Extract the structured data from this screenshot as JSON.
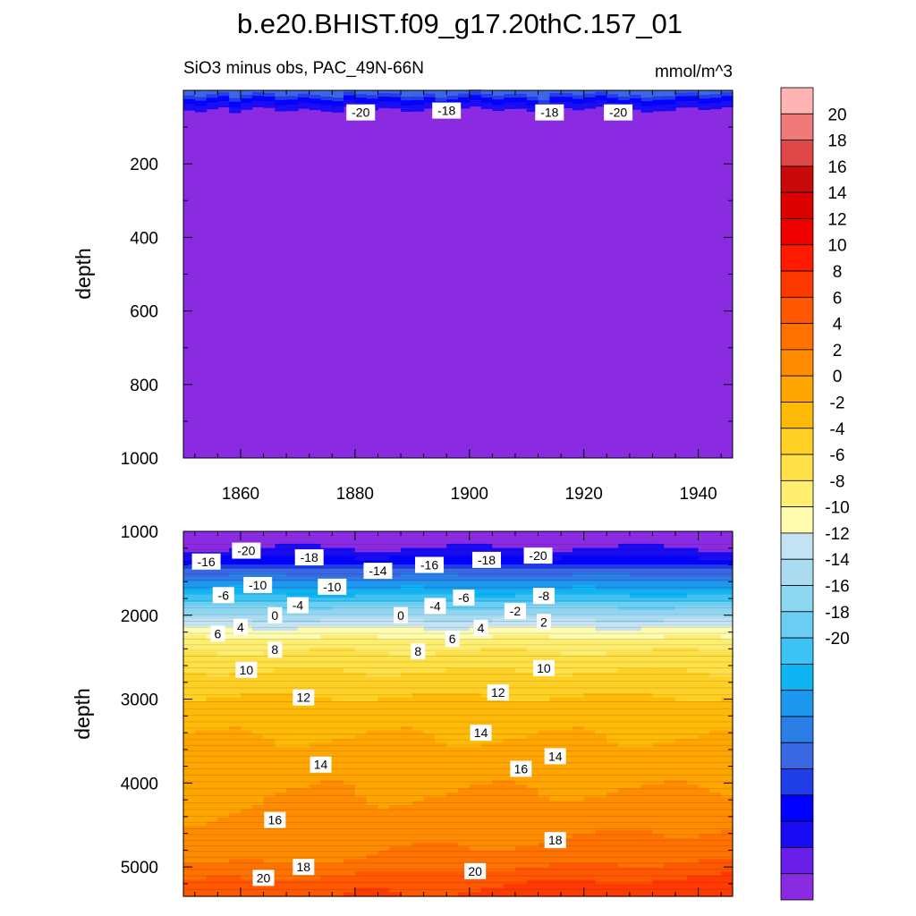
{
  "title": "b.e20.BHIST.f09_g17.20thC.157_01",
  "subtitle_left": "SiO3 minus obs, PAC_49N-66N",
  "subtitle_right": "mmol/m^3",
  "colors": {
    "levels": [
      "#8a2be2",
      "#6a1fe8",
      "#1a0cf2",
      "#0000ff",
      "#1f3ee8",
      "#3a68e2",
      "#2a7fe6",
      "#1e98ef",
      "#0fb5f3",
      "#3cc3f3",
      "#6ccdf2",
      "#8dd6f1",
      "#a9dcf0",
      "#c4e3f2",
      "#fffcb0",
      "#ffee70",
      "#ffe046",
      "#ffd025",
      "#ffba08",
      "#ffa500",
      "#ff8c00",
      "#ff7200",
      "#ff5800",
      "#ff3a00",
      "#ff1a00",
      "#ee0000",
      "#dd0000",
      "#c80a0a",
      "#e04848",
      "#f07a7a",
      "#ffb3b3"
    ]
  },
  "chart_data": [
    {
      "type": "heatmap",
      "panel": "top",
      "xlabel": "",
      "ylabel": "depth",
      "xlim": [
        1850,
        1946
      ],
      "ylim": [
        1000,
        0
      ],
      "xticks": [
        1860,
        1880,
        1900,
        1920,
        1940
      ],
      "yticks": [
        200,
        400,
        600,
        800,
        1000
      ],
      "field": "nearly uniform -21 below 50 m; near-surface layer grades from -13 to -20",
      "contour_labels": [
        {
          "text": "-20",
          "x": 1881,
          "y": 60
        },
        {
          "text": "-18",
          "x": 1896,
          "y": 55
        },
        {
          "text": "-18",
          "x": 1914,
          "y": 60
        },
        {
          "text": "-20",
          "x": 1926,
          "y": 60
        }
      ]
    },
    {
      "type": "heatmap",
      "panel": "bottom",
      "xlabel": "",
      "ylabel": "depth",
      "xlim": [
        1850,
        1946
      ],
      "ylim": [
        5350,
        1000
      ],
      "yticks": [
        1000,
        2000,
        3000,
        4000,
        5000
      ],
      "depth_profile": {
        "depths": [
          1000,
          1150,
          1250,
          1330,
          1420,
          1560,
          1720,
          1860,
          1940,
          2000,
          2080,
          2200,
          2380,
          2600,
          2800,
          3050,
          3300,
          3550,
          3800,
          4000,
          4500,
          4900,
          5000,
          5100,
          5200,
          5300
        ],
        "values": [
          -21,
          -20.5,
          -19.5,
          -17.5,
          -15,
          -11,
          -7,
          -3.5,
          -1,
          0.5,
          2.5,
          5,
          7.5,
          9.5,
          11,
          12.5,
          13.5,
          14.3,
          15.2,
          15.7,
          16.3,
          17.2,
          18.2,
          19.3,
          20.3,
          21
        ]
      },
      "contour_labels": [
        {
          "text": "-16",
          "x": 1854,
          "y": 1360
        },
        {
          "text": "-20",
          "x": 1861,
          "y": 1230
        },
        {
          "text": "-18",
          "x": 1872,
          "y": 1310
        },
        {
          "text": "-14",
          "x": 1884,
          "y": 1470
        },
        {
          "text": "-16",
          "x": 1893,
          "y": 1400
        },
        {
          "text": "-18",
          "x": 1903,
          "y": 1340
        },
        {
          "text": "-20",
          "x": 1912,
          "y": 1290
        },
        {
          "text": "-6",
          "x": 1857,
          "y": 1760
        },
        {
          "text": "-10",
          "x": 1863,
          "y": 1640
        },
        {
          "text": "-4",
          "x": 1870,
          "y": 1880
        },
        {
          "text": "-10",
          "x": 1876,
          "y": 1660
        },
        {
          "text": "0",
          "x": 1866,
          "y": 2000
        },
        {
          "text": "0",
          "x": 1888,
          "y": 2000
        },
        {
          "text": "-4",
          "x": 1894,
          "y": 1890
        },
        {
          "text": "-6",
          "x": 1899,
          "y": 1790
        },
        {
          "text": "-2",
          "x": 1908,
          "y": 1950
        },
        {
          "text": "-8",
          "x": 1913,
          "y": 1770
        },
        {
          "text": "2",
          "x": 1913,
          "y": 2080
        },
        {
          "text": "6",
          "x": 1856,
          "y": 2220
        },
        {
          "text": "4",
          "x": 1860,
          "y": 2140
        },
        {
          "text": "8",
          "x": 1866,
          "y": 2410
        },
        {
          "text": "8",
          "x": 1891,
          "y": 2430
        },
        {
          "text": "6",
          "x": 1897,
          "y": 2280
        },
        {
          "text": "4",
          "x": 1902,
          "y": 2150
        },
        {
          "text": "10",
          "x": 1861,
          "y": 2650
        },
        {
          "text": "10",
          "x": 1913,
          "y": 2630
        },
        {
          "text": "12",
          "x": 1871,
          "y": 2980
        },
        {
          "text": "12",
          "x": 1905,
          "y": 2920
        },
        {
          "text": "14",
          "x": 1902,
          "y": 3400
        },
        {
          "text": "14",
          "x": 1874,
          "y": 3780
        },
        {
          "text": "14",
          "x": 1915,
          "y": 3680
        },
        {
          "text": "16",
          "x": 1909,
          "y": 3830
        },
        {
          "text": "16",
          "x": 1866,
          "y": 4440
        },
        {
          "text": "18",
          "x": 1871,
          "y": 5000
        },
        {
          "text": "18",
          "x": 1915,
          "y": 4680
        },
        {
          "text": "20",
          "x": 1864,
          "y": 5130
        },
        {
          "text": "20",
          "x": 1901,
          "y": 5050
        }
      ]
    }
  ],
  "colorbar": {
    "labels": [
      "20",
      "18",
      "16",
      "14",
      "12",
      "10",
      "8",
      "6",
      "4",
      "2",
      "0",
      "-2",
      "-4",
      "-6",
      "-8",
      "-10",
      "-12",
      "-14",
      "-16",
      "-18",
      "-20"
    ]
  }
}
